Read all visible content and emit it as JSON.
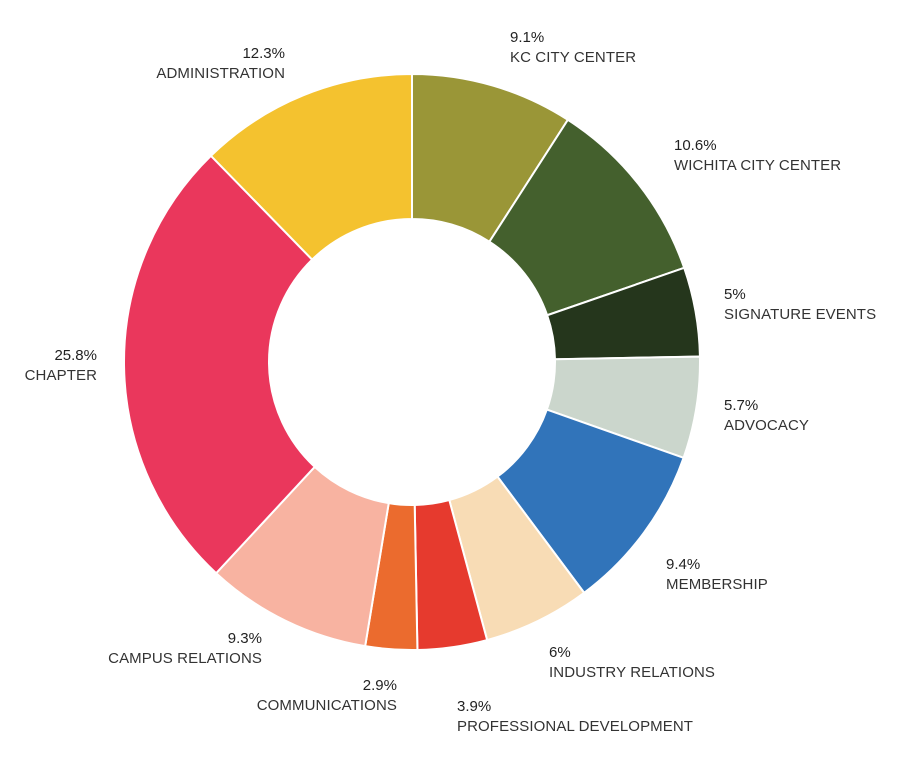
{
  "chart_data": {
    "type": "pie",
    "donut": true,
    "start": "top, clockwise",
    "slices": [
      {
        "label": "KC CITY CENTER",
        "pct_label": "9.1%",
        "value": 9.1,
        "color": "#9a9637"
      },
      {
        "label": "WICHITA CITY CENTER",
        "pct_label": "10.6%",
        "value": 10.6,
        "color": "#44602d"
      },
      {
        "label": "SIGNATURE EVENTS",
        "pct_label": "5%",
        "value": 5.0,
        "color": "#25361c"
      },
      {
        "label": "ADVOCACY",
        "pct_label": "5.7%",
        "value": 5.7,
        "color": "#cbd6cc"
      },
      {
        "label": "MEMBERSHIP",
        "pct_label": "9.4%",
        "value": 9.4,
        "color": "#3174ba"
      },
      {
        "label": "INDUSTRY RELATIONS",
        "pct_label": "6%",
        "value": 6.0,
        "color": "#f8dcb5"
      },
      {
        "label": "PROFESSIONAL DEVELOPMENT",
        "pct_label": "3.9%",
        "value": 3.9,
        "color": "#e63a2e"
      },
      {
        "label": "COMMUNICATIONS",
        "pct_label": "2.9%",
        "value": 2.9,
        "color": "#eb6b2e"
      },
      {
        "label": "CAMPUS RELATIONS",
        "pct_label": "9.3%",
        "value": 9.3,
        "color": "#f8b3a1"
      },
      {
        "label": "CHAPTER",
        "pct_label": "25.8%",
        "value": 25.8,
        "color": "#ea375c"
      },
      {
        "label": "ADMINISTRATION",
        "pct_label": "12.3%",
        "value": 12.3,
        "color": "#f4c22f"
      }
    ]
  }
}
